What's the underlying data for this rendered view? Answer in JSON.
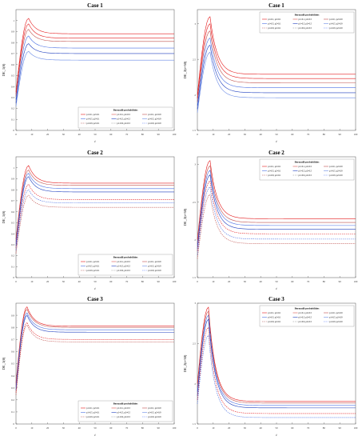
{
  "figure": {
    "legend_title": "Bernoulli probabilities",
    "legend_entries": [
      "p1=0.1, p2=0.1",
      "p1=0.1, p2=0.5",
      "p1=0.1, p2=0.9",
      "p1=0.5, p2=0.1",
      "p1=0.5, p2=0.5",
      "p1=0.5, p2=0.9",
      "p1=0.9, p2=0.1",
      "p1=0.9, p2=0.5",
      "p1=0.9, p2=0.9"
    ],
    "colors": [
      "#e41a1c",
      "#d9534f",
      "#c0504d",
      "#4a6fe3",
      "#1f3fbf",
      "#6a8ae6",
      "#b04a4a",
      "#8a8a8a",
      "#5c7cfa"
    ]
  },
  "chart_data": [
    {
      "type": "line",
      "title": "Case 1",
      "xlabel": "t",
      "ylabel": "DE_1(θ)",
      "xlim": [
        0,
        100
      ],
      "ylim": [
        0,
        1.1
      ],
      "xticks": [
        "0",
        "10",
        "20",
        "30",
        "40",
        "50",
        "60",
        "70",
        "80",
        "90",
        "100"
      ],
      "yticks": [
        "0",
        "0.1",
        "0.2",
        "0.3",
        "0.4",
        "0.5",
        "0.6",
        "0.7",
        "0.8",
        "0.9",
        "1"
      ],
      "legend_position": "bottom-right",
      "series": [
        {
          "dash": false,
          "color": "#e41a1c",
          "start": 0.35,
          "peak": 1.02,
          "peak_t": 8,
          "steady": 0.88
        },
        {
          "dash": false,
          "color": "#e41a1c",
          "start": 0.33,
          "peak": 0.97,
          "peak_t": 8,
          "steady": 0.84
        },
        {
          "dash": false,
          "color": "#c0504d",
          "start": 0.31,
          "peak": 0.92,
          "peak_t": 8,
          "steady": 0.81
        },
        {
          "dash": false,
          "color": "#4a6fe3",
          "start": 0.28,
          "peak": 0.86,
          "peak_t": 8,
          "steady": 0.75
        },
        {
          "dash": false,
          "color": "#1f3fbf",
          "start": 0.25,
          "peak": 0.79,
          "peak_t": 8,
          "steady": 0.7
        },
        {
          "dash": false,
          "color": "#6a8ae6",
          "start": 0.22,
          "peak": 0.72,
          "peak_t": 8,
          "steady": 0.64
        }
      ]
    },
    {
      "type": "line",
      "title": "Case 1",
      "xlabel": "t",
      "ylabel": "DE_2(t=30)",
      "xlim": [
        0,
        100
      ],
      "ylim": [
        1.5,
        3.2
      ],
      "xticks": [
        "0",
        "10",
        "20",
        "30",
        "40",
        "50",
        "60",
        "70",
        "80",
        "90",
        "100"
      ],
      "yticks": [
        "1.5",
        "2",
        "2.5",
        "3"
      ],
      "legend_position": "top-right",
      "series": [
        {
          "dash": false,
          "color": "#e41a1c",
          "start": 2.0,
          "peak": 3.1,
          "peak_t": 8,
          "steady": 2.29
        },
        {
          "dash": false,
          "color": "#e41a1c",
          "start": 1.95,
          "peak": 3.0,
          "peak_t": 8,
          "steady": 2.23
        },
        {
          "dash": false,
          "color": "#c0504d",
          "start": 1.9,
          "peak": 2.9,
          "peak_t": 8,
          "steady": 2.17
        },
        {
          "dash": false,
          "color": "#4a6fe3",
          "start": 1.85,
          "peak": 2.8,
          "peak_t": 8,
          "steady": 2.1
        },
        {
          "dash": false,
          "color": "#1f3fbf",
          "start": 1.8,
          "peak": 2.7,
          "peak_t": 8,
          "steady": 2.03
        },
        {
          "dash": false,
          "color": "#6a8ae6",
          "start": 1.75,
          "peak": 2.6,
          "peak_t": 8,
          "steady": 1.96
        }
      ]
    },
    {
      "type": "line",
      "title": "Case 2",
      "xlabel": "t",
      "ylabel": "DE_1(θ)",
      "xlim": [
        0,
        100
      ],
      "ylim": [
        0,
        1.1
      ],
      "xticks": [
        "0",
        "10",
        "20",
        "30",
        "40",
        "50",
        "60",
        "70",
        "80",
        "90",
        "100"
      ],
      "yticks": [
        "0",
        "0.1",
        "0.2",
        "0.3",
        "0.4",
        "0.5",
        "0.6",
        "0.7",
        "0.8",
        "0.9",
        "1"
      ],
      "legend_position": "bottom-right",
      "series": [
        {
          "dash": false,
          "color": "#e41a1c",
          "start": 0.35,
          "peak": 1.02,
          "peak_t": 8,
          "steady": 0.86
        },
        {
          "dash": false,
          "color": "#c0504d",
          "start": 0.33,
          "peak": 0.98,
          "peak_t": 8,
          "steady": 0.84
        },
        {
          "dash": false,
          "color": "#4a6fe3",
          "start": 0.31,
          "peak": 0.95,
          "peak_t": 8,
          "steady": 0.81
        },
        {
          "dash": false,
          "color": "#1f3fbf",
          "start": 0.29,
          "peak": 0.92,
          "peak_t": 8,
          "steady": 0.78
        },
        {
          "dash": true,
          "color": "#e41a1c",
          "start": 0.27,
          "peak": 0.85,
          "peak_t": 8,
          "steady": 0.71
        },
        {
          "dash": true,
          "color": "#4a6fe3",
          "start": 0.25,
          "peak": 0.8,
          "peak_t": 8,
          "steady": 0.68
        },
        {
          "dash": true,
          "color": "#c0504d",
          "start": 0.22,
          "peak": 0.75,
          "peak_t": 8,
          "steady": 0.64
        }
      ]
    },
    {
      "type": "line",
      "title": "Case 2",
      "xlabel": "t",
      "ylabel": "DE_2(t=30)",
      "xlim": [
        0,
        100
      ],
      "ylim": [
        1.5,
        3.1
      ],
      "xticks": [
        "0",
        "10",
        "20",
        "30",
        "40",
        "50",
        "60",
        "70",
        "80",
        "90",
        "100"
      ],
      "yticks": [
        "1.5",
        "2",
        "2.5",
        "3"
      ],
      "legend_position": "top-right",
      "series": [
        {
          "dash": false,
          "color": "#e41a1c",
          "start": 2.0,
          "peak": 3.05,
          "peak_t": 8,
          "steady": 2.28
        },
        {
          "dash": false,
          "color": "#c0504d",
          "start": 1.95,
          "peak": 2.98,
          "peak_t": 8,
          "steady": 2.23
        },
        {
          "dash": false,
          "color": "#4a6fe3",
          "start": 1.92,
          "peak": 2.92,
          "peak_t": 8,
          "steady": 2.19
        },
        {
          "dash": false,
          "color": "#1f3fbf",
          "start": 1.88,
          "peak": 2.86,
          "peak_t": 8,
          "steady": 2.14
        },
        {
          "dash": true,
          "color": "#e41a1c",
          "start": 1.85,
          "peak": 2.78,
          "peak_t": 8,
          "steady": 2.08
        },
        {
          "dash": true,
          "color": "#4a6fe3",
          "start": 1.8,
          "peak": 2.7,
          "peak_t": 8,
          "steady": 2.01
        },
        {
          "dash": true,
          "color": "#c0504d",
          "start": 1.75,
          "peak": 2.6,
          "peak_t": 8,
          "steady": 1.95
        }
      ]
    },
    {
      "type": "line",
      "title": "Case 3",
      "xlabel": "t",
      "ylabel": "DE_1(θ)",
      "xlim": [
        0,
        100
      ],
      "ylim": [
        0,
        1.0
      ],
      "xticks": [
        "0",
        "10",
        "20",
        "30",
        "40",
        "50",
        "60",
        "70",
        "80",
        "90",
        "100"
      ],
      "yticks": [
        "0",
        "0.1",
        "0.2",
        "0.3",
        "0.4",
        "0.5",
        "0.6",
        "0.7",
        "0.8",
        "0.9"
      ],
      "legend_position": "bottom-right",
      "series": [
        {
          "dash": false,
          "color": "#e41a1c",
          "start": 0.34,
          "peak": 0.97,
          "peak_t": 7,
          "steady": 0.81
        },
        {
          "dash": false,
          "color": "#c0504d",
          "start": 0.32,
          "peak": 0.95,
          "peak_t": 7,
          "steady": 0.8
        },
        {
          "dash": false,
          "color": "#4a6fe3",
          "start": 0.3,
          "peak": 0.92,
          "peak_t": 7,
          "steady": 0.78
        },
        {
          "dash": false,
          "color": "#1f3fbf",
          "start": 0.28,
          "peak": 0.9,
          "peak_t": 7,
          "steady": 0.76
        },
        {
          "dash": true,
          "color": "#e41a1c",
          "start": 0.26,
          "peak": 0.84,
          "peak_t": 7,
          "steady": 0.7
        },
        {
          "dash": true,
          "color": "#c0504d",
          "start": 0.24,
          "peak": 0.82,
          "peak_t": 7,
          "steady": 0.68
        }
      ]
    },
    {
      "type": "line",
      "title": "Case 3",
      "xlabel": "t",
      "ylabel": "DE_2(t=30)",
      "xlim": [
        0,
        100
      ],
      "ylim": [
        1.5,
        3.0
      ],
      "xticks": [
        "0",
        "10",
        "20",
        "30",
        "40",
        "50",
        "60",
        "70",
        "80",
        "90",
        "100"
      ],
      "yticks": [
        "1.5",
        "2",
        "2.5",
        "3"
      ],
      "legend_position": "top-right",
      "series": [
        {
          "dash": false,
          "color": "#e41a1c",
          "start": 2.0,
          "peak": 2.95,
          "peak_t": 7,
          "steady": 1.78
        },
        {
          "dash": false,
          "color": "#c0504d",
          "start": 1.95,
          "peak": 2.9,
          "peak_t": 7,
          "steady": 1.76
        },
        {
          "dash": false,
          "color": "#4a6fe3",
          "start": 1.9,
          "peak": 2.85,
          "peak_t": 7,
          "steady": 1.73
        },
        {
          "dash": false,
          "color": "#1f3fbf",
          "start": 1.85,
          "peak": 2.8,
          "peak_t": 7,
          "steady": 1.7
        },
        {
          "dash": true,
          "color": "#e41a1c",
          "start": 1.8,
          "peak": 2.7,
          "peak_t": 7,
          "steady": 1.63
        },
        {
          "dash": true,
          "color": "#4a6fe3",
          "start": 1.75,
          "peak": 2.6,
          "peak_t": 7,
          "steady": 1.58
        }
      ]
    }
  ]
}
